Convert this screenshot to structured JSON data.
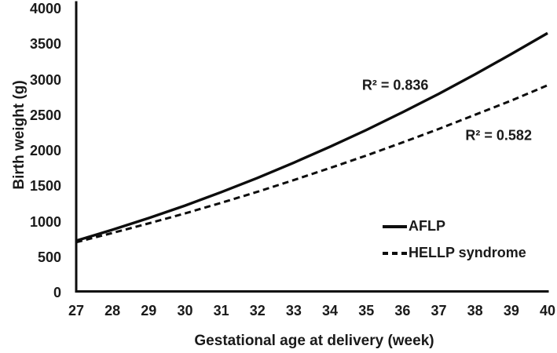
{
  "chart_data": {
    "type": "line",
    "title": "",
    "xlabel": "Gestational age at delivery (week)",
    "ylabel": "Birth weight (g)",
    "xlim": [
      27,
      40
    ],
    "ylim": [
      0,
      4000
    ],
    "x_ticks": [
      27,
      28,
      29,
      30,
      31,
      32,
      33,
      34,
      35,
      36,
      37,
      38,
      39,
      40
    ],
    "y_ticks": [
      0,
      500,
      1000,
      1500,
      2000,
      2500,
      3000,
      3500,
      4000
    ],
    "grid": false,
    "legend_position": "lower right",
    "x": [
      27,
      28,
      29,
      30,
      31,
      32,
      33,
      34,
      35,
      36,
      37,
      38,
      39,
      40
    ],
    "series": [
      {
        "name": "AFLP",
        "line_style": "solid",
        "color": "#0d0d0d",
        "values": [
          730,
          885,
          1050,
          1225,
          1415,
          1615,
          1830,
          2055,
          2290,
          2540,
          2800,
          3075,
          3360,
          3655
        ],
        "r_squared_label": "R² = 0.836",
        "r_squared_anchor": {
          "week": 35.8,
          "grams": 2920
        }
      },
      {
        "name": "HELLP syndrome",
        "line_style": "dashed",
        "color": "#0d0d0d",
        "values": [
          710,
          840,
          975,
          1115,
          1265,
          1420,
          1585,
          1755,
          1930,
          2115,
          2305,
          2505,
          2705,
          2920
        ],
        "r_squared_label": "R² = 0.582",
        "r_squared_anchor": {
          "week": 38.65,
          "grams": 2210
        }
      }
    ]
  },
  "colors": {
    "foreground": "#0d0d0d",
    "background": "#ffffff"
  }
}
